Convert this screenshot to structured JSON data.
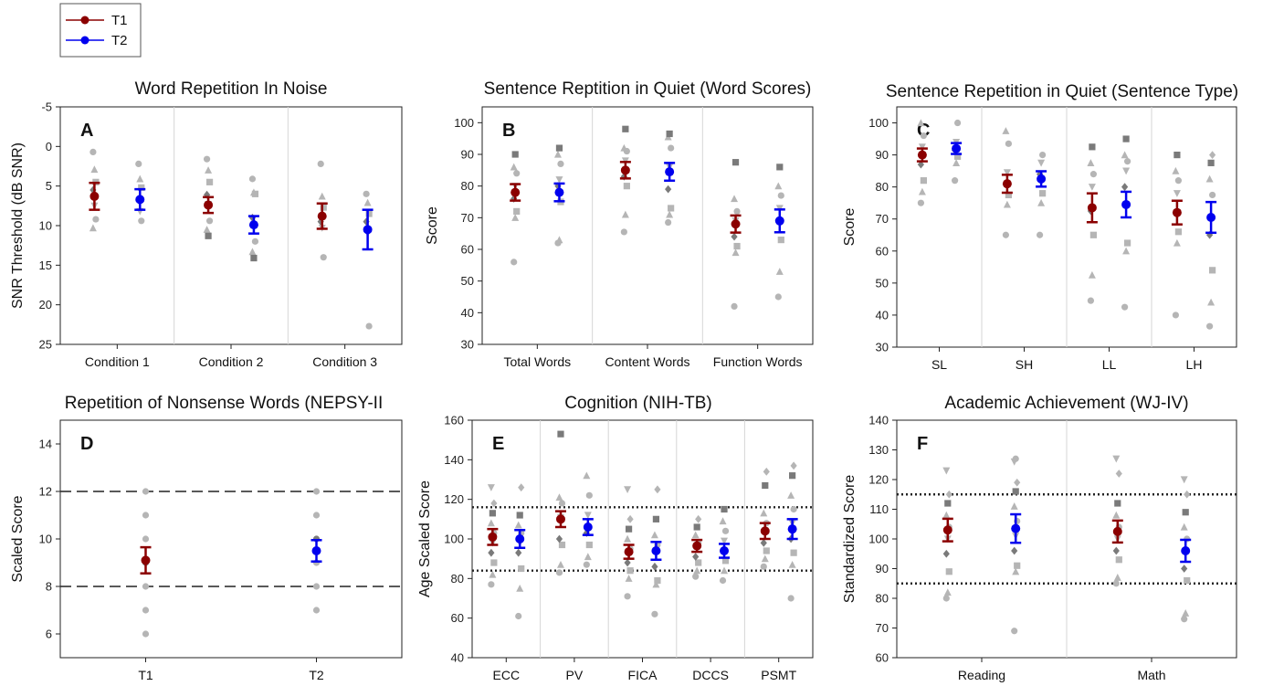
{
  "legend": {
    "items": [
      {
        "label": "T1",
        "color": "#8b0000"
      },
      {
        "label": "T2",
        "color": "#0000ee"
      }
    ]
  },
  "colors": {
    "t1": "#8b0000",
    "t2": "#0000ee",
    "individual": "#b5b5b5",
    "individual_dark": "#7a7a7a"
  },
  "chart_data": [
    {
      "id": "A",
      "type": "scatter",
      "title": "Word Repetition In Noise",
      "ylabel": "SNR Threshold (dB SNR)",
      "xlabel": "",
      "ylim": [
        25,
        -5
      ],
      "y_inverted": true,
      "yticks": [
        -5,
        0,
        5,
        10,
        15,
        20,
        25
      ],
      "categories": [
        "Condition 1",
        "Condition 2",
        "Condition 3"
      ],
      "group_separators": true,
      "series": [
        {
          "name": "T1",
          "values": [
            6.3,
            7.4,
            8.8
          ],
          "err": [
            1.7,
            1.0,
            1.6
          ],
          "individual": [
            [
              0.7,
              2.9,
              4.5,
              5.5,
              7.5,
              9.2,
              10.3
            ],
            [
              1.6,
              3.0,
              4.5,
              6.1,
              7.3,
              9.4,
              10.5,
              11.3
            ],
            [
              2.2,
              6.3,
              7.7,
              9.5,
              10.3,
              14.0
            ]
          ]
        },
        {
          "name": "T2",
          "values": [
            6.7,
            9.9,
            10.5
          ],
          "err": [
            1.3,
            1.1,
            2.5
          ],
          "individual": [
            [
              2.2,
              4.1,
              5.2,
              6.8,
              8.2,
              9.4
            ],
            [
              4.1,
              5.8,
              6.0,
              9.0,
              10.2,
              12.0,
              13.3,
              14.1
            ],
            [
              6.0,
              7.1,
              8.5,
              9.5,
              11.0,
              22.7
            ]
          ]
        }
      ]
    },
    {
      "id": "B",
      "type": "scatter",
      "title": "Sentence Reptition in Quiet (Word Scores)",
      "ylabel": "Score",
      "xlabel": "",
      "ylim": [
        30,
        105
      ],
      "yticks": [
        30,
        40,
        50,
        60,
        70,
        80,
        90,
        100
      ],
      "categories": [
        "Total Words",
        "Content Words",
        "Function Words"
      ],
      "group_separators": true,
      "series": [
        {
          "name": "T1",
          "values": [
            78,
            85,
            68
          ],
          "err": [
            2.6,
            2.6,
            2.7
          ],
          "individual": [
            [
              56,
              70,
              72,
              76,
              80,
              84,
              86,
              90
            ],
            [
              65.5,
              71,
              80,
              83,
              88,
              91,
              92,
              98
            ],
            [
              42,
              59,
              61,
              64,
              69,
              72,
              76,
              87.5
            ]
          ]
        },
        {
          "name": "T2",
          "values": [
            78,
            84.5,
            69
          ],
          "err": [
            2.8,
            2.8,
            3.6
          ],
          "individual": [
            [
              62,
              63,
              75,
              80,
              82,
              87,
              90,
              92
            ],
            [
              68.5,
              71,
              73,
              79,
              86,
              92,
              95.5,
              96.5
            ],
            [
              45,
              53,
              63,
              69,
              73,
              77,
              80,
              86
            ]
          ]
        }
      ]
    },
    {
      "id": "C",
      "type": "scatter",
      "title": "Sentence Repetition in Quiet (Sentence Type)",
      "ylabel": "Score",
      "xlabel": "",
      "ylim": [
        30,
        105
      ],
      "yticks": [
        30,
        40,
        50,
        60,
        70,
        80,
        90,
        100
      ],
      "categories": [
        "SL",
        "SH",
        "LL",
        "LH"
      ],
      "group_separators": true,
      "series": [
        {
          "name": "T1",
          "values": [
            90,
            81,
            73.5,
            72
          ],
          "err": [
            2.0,
            2.8,
            4.5,
            3.7
          ],
          "individual": [
            [
              75,
              78.5,
              82,
              87,
              92.5,
              96,
              100
            ],
            [
              65,
              74.5,
              77.5,
              81,
              84.5,
              93.5,
              97.5
            ],
            [
              44.5,
              52.5,
              65,
              72.5,
              80,
              84,
              87.5,
              92.5
            ],
            [
              40,
              62.5,
              66,
              72,
              78,
              82,
              85,
              90
            ]
          ]
        },
        {
          "name": "T2",
          "values": [
            92,
            82.5,
            74.5,
            70.5
          ],
          "err": [
            1.7,
            2.4,
            4.0,
            4.8
          ],
          "individual": [
            [
              82,
              87.5,
              89.5,
              91.5,
              94,
              100
            ],
            [
              65,
              75,
              78,
              84,
              87.5,
              90
            ],
            [
              42.5,
              60,
              62.5,
              80,
              85,
              88,
              90,
              95
            ],
            [
              36.5,
              44,
              54,
              65,
              70,
              77.5,
              82.5,
              87.5,
              90
            ]
          ]
        }
      ]
    },
    {
      "id": "D",
      "type": "scatter",
      "title": "Repetition of Nonsense Words (NEPSY-II",
      "ylabel": "Scaled Score",
      "xlabel": "",
      "ylim": [
        5,
        15
      ],
      "yticks": [
        6,
        8,
        10,
        12,
        14
      ],
      "categories": [
        "T1",
        "T2"
      ],
      "group_separators": false,
      "reference_lines": [
        8,
        12
      ],
      "reference_style": "dashed",
      "series": [
        {
          "name": "T1",
          "values": [
            9.1,
            null
          ],
          "err": [
            0.55,
            null
          ],
          "individual": [
            [
              6,
              7,
              8,
              9,
              10,
              11,
              12
            ],
            []
          ]
        },
        {
          "name": "T2",
          "values": [
            null,
            9.5
          ],
          "err": [
            null,
            0.45
          ],
          "individual": [
            [],
            [
              7,
              8,
              9,
              10,
              11,
              12
            ]
          ]
        }
      ]
    },
    {
      "id": "E",
      "type": "scatter",
      "title": "Cognition (NIH-TB)",
      "ylabel": "Age Scaled Score",
      "xlabel": "",
      "ylim": [
        40,
        160
      ],
      "yticks": [
        40,
        60,
        80,
        100,
        120,
        140,
        160
      ],
      "categories": [
        "ECC",
        "PV",
        "FICA",
        "DCCS",
        "PSMT"
      ],
      "group_separators": true,
      "reference_lines": [
        84,
        116
      ],
      "reference_style": "dotted",
      "series": [
        {
          "name": "T1",
          "values": [
            101,
            110,
            93.5,
            96.5,
            104
          ],
          "err": [
            4.0,
            4.0,
            3.5,
            3.0,
            4.0
          ],
          "individual": [
            [
              77,
              82,
              88,
              93,
              98,
              103,
              108,
              113,
              118,
              126
            ],
            [
              83,
              87,
              97,
              100,
              111,
              118,
              121,
              153
            ],
            [
              71,
              80,
              84,
              88,
              92,
              95,
              100,
              105,
              110,
              125
            ],
            [
              81,
              84,
              88,
              91,
              95,
              98,
              102,
              106,
              110
            ],
            [
              86,
              90,
              94,
              98,
              103,
              108,
              113,
              127,
              134
            ]
          ]
        },
        {
          "name": "T2",
          "values": [
            100,
            106,
            94,
            94,
            105
          ],
          "err": [
            4.5,
            4.0,
            4.5,
            3.5,
            5.0
          ],
          "individual": [
            [
              61,
              75,
              85,
              93,
              98,
              103,
              107,
              112,
              126
            ],
            [
              87,
              91,
              97,
              103,
              112,
              122,
              132
            ],
            [
              62,
              77,
              79,
              86,
              93,
              97,
              102,
              110,
              125
            ],
            [
              79,
              84,
              89,
              94,
              99,
              104,
              109,
              115
            ],
            [
              70,
              87,
              93,
              100,
              108,
              115,
              122,
              132,
              137
            ]
          ]
        }
      ]
    },
    {
      "id": "F",
      "type": "scatter",
      "title": "Academic Achievement (WJ-IV)",
      "ylabel": "Standardized Score",
      "xlabel": "",
      "ylim": [
        60,
        140
      ],
      "yticks": [
        60,
        70,
        80,
        90,
        100,
        110,
        120,
        130,
        140
      ],
      "categories": [
        "Reading",
        "Math"
      ],
      "group_separators": true,
      "reference_lines": [
        85,
        115
      ],
      "reference_style": "dotted",
      "series": [
        {
          "name": "T1",
          "values": [
            103,
            102.5
          ],
          "err": [
            3.8,
            3.7
          ],
          "individual": [
            [
              80,
              82,
              89,
              95,
              100,
              104,
              108,
              112,
              115,
              123
            ],
            [
              85,
              87,
              93,
              96,
              100,
              104,
              108,
              112,
              122,
              127
            ]
          ]
        },
        {
          "name": "T2",
          "values": [
            103.5,
            96
          ],
          "err": [
            4.8,
            3.7
          ],
          "individual": [
            [
              69,
              89,
              91,
              96,
              101,
              106,
              111,
              116,
              119,
              126,
              127
            ],
            [
              73,
              75,
              86,
              90,
              95,
              100,
              104,
              109,
              115,
              120
            ]
          ]
        }
      ]
    }
  ]
}
